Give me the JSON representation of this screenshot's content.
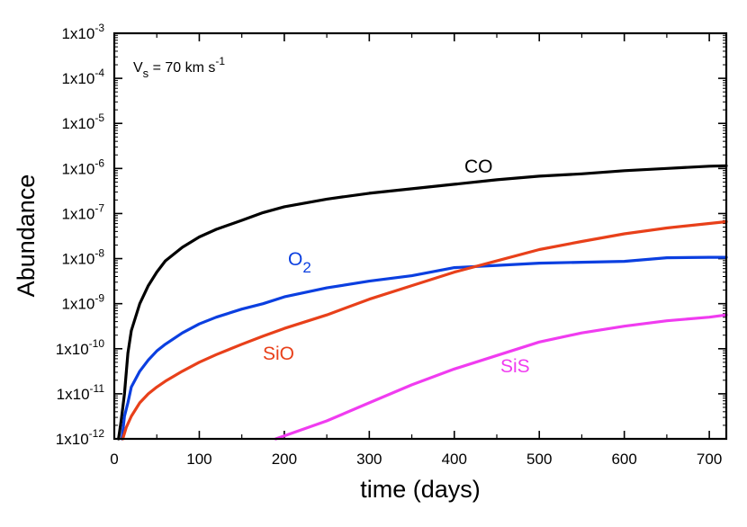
{
  "chart_data": {
    "type": "line",
    "title": "",
    "xlabel": "time (days)",
    "ylabel": "Abundance",
    "xlim": [
      0,
      720
    ],
    "ylim_log10": [
      -12,
      -3
    ],
    "yscale": "log",
    "x_ticks": [
      0,
      100,
      200,
      300,
      400,
      500,
      600,
      700
    ],
    "y_tick_exponents": [
      -3,
      -4,
      -5,
      -6,
      -7,
      -8,
      -9,
      -10,
      -11,
      -12
    ],
    "y_tick_base": "1x10",
    "grid": false,
    "annotation": {
      "prefix": "V",
      "subscript": "s",
      "text": " = 70 km s",
      "superscript": "-1"
    },
    "series": [
      {
        "name": "CO",
        "label_main": "CO",
        "label_sub": "",
        "color": "#000000",
        "x": [
          5,
          8,
          12,
          16,
          20,
          30,
          40,
          50,
          60,
          80,
          100,
          120,
          150,
          175,
          200,
          250,
          300,
          350,
          400,
          450,
          500,
          550,
          600,
          650,
          700,
          720
        ],
        "log10": [
          -12,
          -11.6,
          -11,
          -10.1,
          -9.6,
          -9.0,
          -8.6,
          -8.3,
          -8.05,
          -7.75,
          -7.52,
          -7.35,
          -7.15,
          -6.98,
          -6.85,
          -6.68,
          -6.55,
          -6.45,
          -6.35,
          -6.25,
          -6.17,
          -6.12,
          -6.05,
          -6.0,
          -5.95,
          -5.94
        ]
      },
      {
        "name": "O2",
        "label_main": "O",
        "label_sub": "2",
        "color": "#0b3fe0",
        "x": [
          9,
          12,
          16,
          20,
          30,
          40,
          50,
          60,
          80,
          100,
          120,
          150,
          175,
          200,
          250,
          300,
          350,
          400,
          450,
          500,
          550,
          600,
          650,
          700,
          720
        ],
        "log10": [
          -12,
          -11.5,
          -11.2,
          -10.85,
          -10.5,
          -10.25,
          -10.05,
          -9.9,
          -9.65,
          -9.45,
          -9.3,
          -9.12,
          -9.0,
          -8.85,
          -8.65,
          -8.5,
          -8.38,
          -8.2,
          -8.15,
          -8.1,
          -8.08,
          -8.06,
          -7.98,
          -7.97,
          -7.97
        ]
      },
      {
        "name": "SiO",
        "label_main": "SiO",
        "label_sub": "",
        "color": "#e8401a",
        "x": [
          10,
          14,
          20,
          30,
          40,
          50,
          60,
          80,
          100,
          120,
          150,
          175,
          200,
          250,
          300,
          350,
          400,
          450,
          500,
          550,
          600,
          650,
          700,
          720
        ],
        "log10": [
          -12,
          -11.75,
          -11.5,
          -11.2,
          -11.0,
          -10.85,
          -10.72,
          -10.5,
          -10.3,
          -10.13,
          -9.9,
          -9.72,
          -9.55,
          -9.25,
          -8.9,
          -8.6,
          -8.3,
          -8.05,
          -7.8,
          -7.62,
          -7.45,
          -7.32,
          -7.22,
          -7.18
        ]
      },
      {
        "name": "SiS",
        "label_main": "SiS",
        "label_sub": "",
        "color": "#f03cf0",
        "x": [
          190,
          250,
          300,
          350,
          400,
          450,
          500,
          550,
          600,
          650,
          700,
          720
        ],
        "log10": [
          -12,
          -11.6,
          -11.2,
          -10.8,
          -10.45,
          -10.15,
          -9.85,
          -9.65,
          -9.5,
          -9.38,
          -9.3,
          -9.25
        ]
      }
    ]
  }
}
